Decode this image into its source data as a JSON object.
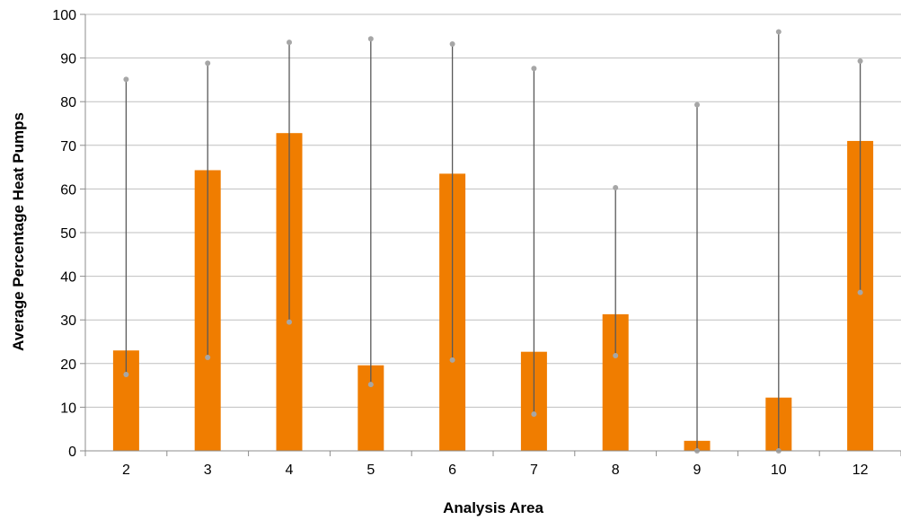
{
  "chart_data": {
    "type": "bar",
    "title": "",
    "xlabel": "Analysis Area",
    "ylabel": "Average Percentage Heat Pumps",
    "categories": [
      "2",
      "3",
      "4",
      "5",
      "6",
      "7",
      "8",
      "9",
      "10",
      "12"
    ],
    "series": [
      {
        "values": [
          23,
          64.3,
          72.8,
          19.6,
          63.5,
          22.7,
          31.3,
          2.3,
          12.2,
          71
        ],
        "error_min": [
          17.5,
          21.4,
          29.5,
          15.2,
          20.8,
          8.4,
          21.8,
          0,
          0,
          36.3
        ],
        "error_max": [
          85.1,
          88.8,
          93.6,
          94.4,
          93.2,
          87.6,
          60.3,
          79.3,
          96,
          89.3
        ]
      }
    ],
    "ylim": [
      0,
      100
    ],
    "yticks": [
      0,
      10,
      20,
      30,
      40,
      50,
      60,
      70,
      80,
      90,
      100
    ],
    "grid": true,
    "legend": "none",
    "colors": {
      "bar": "#F07D00",
      "whisker": "#595959",
      "marker": "#A6A6A6",
      "grid": "#BFBFBF"
    }
  }
}
